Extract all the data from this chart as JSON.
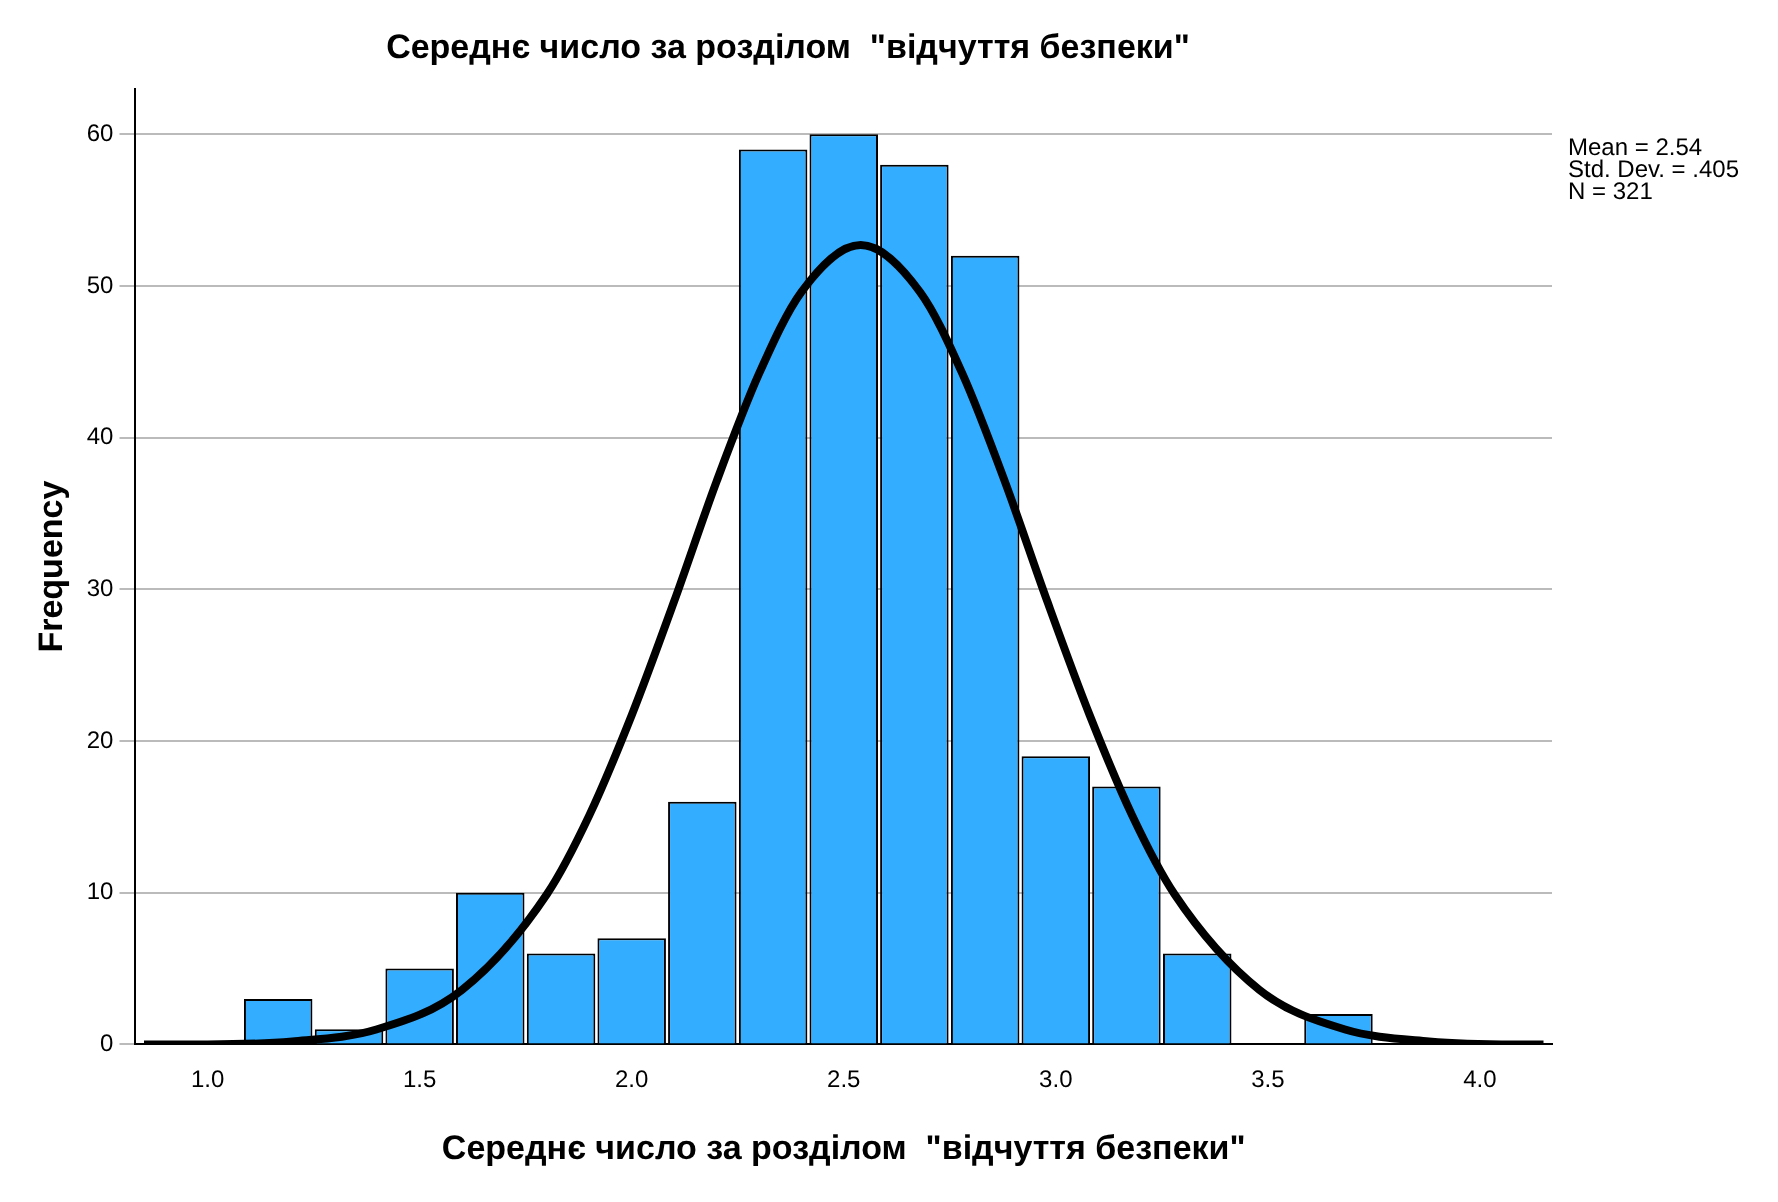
{
  "chart_data": {
    "type": "histogram",
    "title": "Середнє число за розділом  \"відчуття безпеки\"",
    "xlabel": "Середнє число за розділом  \"відчуття безпеки\"",
    "ylabel": "Frequency",
    "bins": [
      1.083,
      1.25,
      1.417,
      1.583,
      1.75,
      1.917,
      2.083,
      2.25,
      2.417,
      2.583,
      2.75,
      2.917,
      3.083,
      3.25,
      3.417,
      3.583,
      3.75
    ],
    "values": [
      3,
      1,
      5,
      10,
      6,
      7,
      16,
      59,
      60,
      58,
      52,
      19,
      17,
      6,
      0,
      2
    ],
    "color": "#33adff",
    "series": [
      {
        "type": "line",
        "color": "#000000",
        "x": [
          0.85,
          1.0,
          1.2,
          1.4,
          1.6,
          1.8,
          1.9,
          2.0,
          2.1,
          2.2,
          2.3,
          2.4,
          2.54,
          2.68,
          2.78,
          2.88,
          2.98,
          3.08,
          3.18,
          3.28,
          3.48,
          3.68,
          3.88,
          4.08,
          4.15
        ],
        "values": [
          0,
          0,
          0.2,
          1,
          3.6,
          9.9,
          15.1,
          21.7,
          29.2,
          37.1,
          44.2,
          49.6,
          52.7,
          49.6,
          44.2,
          37.1,
          29.2,
          21.7,
          15.1,
          9.9,
          3.6,
          1,
          0.2,
          0,
          0
        ]
      }
    ],
    "xlim": [
      0.83,
      4.17
    ],
    "xticks": [
      {
        "value": 1,
        "label": "1.0"
      },
      {
        "value": 1.5,
        "label": "1.5"
      },
      {
        "value": 2,
        "label": "2.0"
      },
      {
        "value": 2.5,
        "label": "2.5"
      },
      {
        "value": 3,
        "label": "3.0"
      },
      {
        "value": 3.5,
        "label": "3.5"
      },
      {
        "value": 4,
        "label": "4.0"
      }
    ],
    "ylim": [
      0,
      63
    ],
    "yticks": [
      0,
      10,
      20,
      30,
      40,
      50,
      60
    ],
    "grid": "y",
    "marker": "none",
    "annotations": [
      "Mean = 2.54",
      "Std. Dev. = .405",
      "N = 321"
    ]
  }
}
